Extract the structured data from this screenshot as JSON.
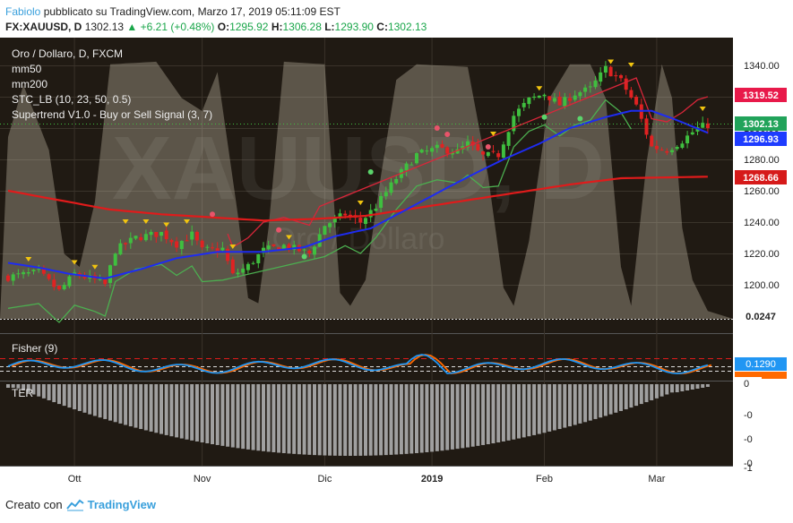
{
  "header": {
    "author": "Fabiolo",
    "published_text": "pubblicato su TradingView.com, Marzo 17, 2019 05:11:09 EST",
    "symbol": "FX:XAUUSD, D",
    "last": "1302.13",
    "change": "+6.21 (+0.48%)",
    "o_label": "O:",
    "o": "1295.92",
    "h_label": "H:",
    "h": "1306.28",
    "l_label": "L:",
    "l": "1293.90",
    "c_label": "C:",
    "c": "1302.13"
  },
  "legend": {
    "title": "Oro / Dollaro, D, FXCM",
    "lines": [
      "mm50",
      "mm200",
      "STC_LB (10, 23, 50, 0.5)",
      "Supertrend V1.0 - Buy or Sell Signal (3, 7)"
    ]
  },
  "watermark": {
    "big": "XAUUSD, D",
    "small": "Oro / Dollaro"
  },
  "price_axis": {
    "ticks": [
      "1340.00",
      "1320.00",
      "1300.00",
      "1280.00",
      "1260.00",
      "1240.00",
      "1220.00",
      "1200.00"
    ],
    "badges": [
      {
        "text": "1319.52",
        "color": "#e8194a"
      },
      {
        "text": "1302.13",
        "color": "#21a35a"
      },
      {
        "text": "1296.93",
        "color": "#1e3cff"
      },
      {
        "text": "1268.66",
        "color": "#d61a1a"
      },
      {
        "text": "0.0247",
        "color": "#ffffff"
      }
    ]
  },
  "fisher": {
    "label": "Fisher (9)",
    "badge": "0.1290",
    "badge_color": "#2196f3"
  },
  "ter": {
    "label": "TER",
    "ticks": [
      "0",
      "-0",
      "-0",
      "-0",
      "-1"
    ]
  },
  "time_axis": {
    "labels": [
      "Ott",
      "Nov",
      "Dic",
      "2019",
      "Feb",
      "Mar"
    ]
  },
  "footer": {
    "created_with": "Creato con",
    "brand": "TradingView"
  },
  "colors": {
    "background": "#201a13",
    "mm50": "#1e2cf0",
    "mm200": "#e01b1b",
    "supertrend_up": "#4caf50",
    "supertrend_down": "#d9263a",
    "candle_up": "#3fbf3f",
    "candle_down": "#e02222",
    "stc": "#8c8474",
    "fisher_a": "#2196f3",
    "fisher_b": "#ff6a00",
    "ter_bars": "#a0a0a0"
  },
  "chart_data": {
    "type": "candlestick",
    "title": "Oro / Dollaro, D, FXCM",
    "ylim": [
      1191,
      1352
    ],
    "x_labels": [
      "Ott",
      "Nov",
      "Dic",
      "2019",
      "Feb",
      "Mar"
    ],
    "close_anchors": [
      [
        0,
        1205
      ],
      [
        6,
        1208
      ],
      [
        10,
        1196
      ],
      [
        13,
        1207
      ],
      [
        17,
        1203
      ],
      [
        19,
        1200
      ],
      [
        21,
        1222
      ],
      [
        25,
        1230
      ],
      [
        30,
        1233
      ],
      [
        33,
        1226
      ],
      [
        36,
        1232
      ],
      [
        38,
        1222
      ],
      [
        42,
        1223
      ],
      [
        44,
        1206
      ],
      [
        47,
        1212
      ],
      [
        50,
        1222
      ],
      [
        54,
        1225
      ],
      [
        57,
        1222
      ],
      [
        59,
        1220
      ],
      [
        62,
        1238
      ],
      [
        66,
        1245
      ],
      [
        69,
        1240
      ],
      [
        72,
        1250
      ],
      [
        76,
        1268
      ],
      [
        80,
        1283
      ],
      [
        84,
        1287
      ],
      [
        88,
        1285
      ],
      [
        90,
        1290
      ],
      [
        93,
        1282
      ],
      [
        96,
        1283
      ],
      [
        99,
        1308
      ],
      [
        102,
        1318
      ],
      [
        105,
        1322
      ],
      [
        108,
        1315
      ],
      [
        111,
        1322
      ],
      [
        114,
        1325
      ],
      [
        117,
        1338
      ],
      [
        120,
        1330
      ],
      [
        123,
        1314
      ],
      [
        126,
        1288
      ],
      [
        129,
        1286
      ],
      [
        132,
        1292
      ],
      [
        135,
        1300
      ],
      [
        137,
        1302
      ]
    ],
    "mm50_anchors": [
      [
        0,
        1214
      ],
      [
        6,
        1211
      ],
      [
        12,
        1207
      ],
      [
        19,
        1204
      ],
      [
        26,
        1210
      ],
      [
        33,
        1217
      ],
      [
        41,
        1221
      ],
      [
        50,
        1221
      ],
      [
        58,
        1224
      ],
      [
        64,
        1231
      ],
      [
        71,
        1236
      ],
      [
        78,
        1248
      ],
      [
        86,
        1262
      ],
      [
        92,
        1272
      ],
      [
        97,
        1280
      ],
      [
        104,
        1290
      ],
      [
        110,
        1300
      ],
      [
        117,
        1307
      ],
      [
        122,
        1311
      ],
      [
        126,
        1311
      ],
      [
        131,
        1305
      ],
      [
        137,
        1297
      ]
    ],
    "mm200_anchors": [
      [
        0,
        1260
      ],
      [
        10,
        1254
      ],
      [
        20,
        1248
      ],
      [
        30,
        1245
      ],
      [
        40,
        1243
      ],
      [
        50,
        1241
      ],
      [
        60,
        1242
      ],
      [
        70,
        1244
      ],
      [
        80,
        1249
      ],
      [
        90,
        1254
      ],
      [
        100,
        1259
      ],
      [
        110,
        1264
      ],
      [
        120,
        1268
      ],
      [
        137,
        1269
      ]
    ],
    "stc_anchors": [
      [
        0,
        0.7
      ],
      [
        3,
        0.9
      ],
      [
        8,
        0.65
      ],
      [
        11,
        0.25
      ],
      [
        14,
        0.2
      ],
      [
        17,
        0.45
      ],
      [
        20,
        0.98
      ],
      [
        29,
        0.99
      ],
      [
        34,
        0.85
      ],
      [
        38,
        0.8
      ],
      [
        41,
        0.95
      ],
      [
        45,
        0.4
      ],
      [
        47,
        0.08
      ],
      [
        49,
        0.06
      ],
      [
        51,
        0.35
      ],
      [
        54,
        0.99
      ],
      [
        62,
        0.98
      ],
      [
        65,
        0.1
      ],
      [
        67,
        0.05
      ],
      [
        70,
        0.15
      ],
      [
        73,
        0.55
      ],
      [
        76,
        0.92
      ],
      [
        80,
        0.98
      ],
      [
        90,
        0.97
      ],
      [
        94,
        0.55
      ],
      [
        97,
        0.12
      ],
      [
        99,
        0.05
      ],
      [
        102,
        0.3
      ],
      [
        106,
        0.85
      ],
      [
        110,
        0.98
      ],
      [
        114,
        0.98
      ],
      [
        117,
        0.85
      ],
      [
        120,
        0.2
      ],
      [
        122,
        0.05
      ],
      [
        125,
        0.6
      ],
      [
        128,
        0.98
      ],
      [
        130,
        0.85
      ],
      [
        132,
        0.35
      ],
      [
        134,
        0.15
      ],
      [
        137,
        0.03
      ]
    ]
  }
}
